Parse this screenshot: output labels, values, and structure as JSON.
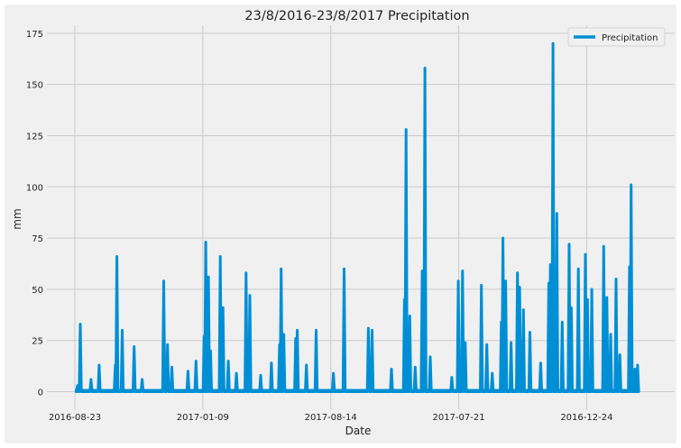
{
  "chart_data": {
    "type": "line",
    "title": "23/8/2016-23/8/2017 Precipitation",
    "xlabel": "Date",
    "ylabel": "mm",
    "ylim": [
      -9,
      178
    ],
    "x_tick_labels": [
      "2016-08-23",
      "2017-01-09",
      "2017-08-14",
      "2017-07-21",
      "2016-12-24"
    ],
    "y_ticks": [
      0,
      25,
      50,
      75,
      100,
      125,
      150,
      175
    ],
    "grid": true,
    "legend": {
      "position": "top-right",
      "entries": [
        "Precipitation"
      ]
    },
    "colors": {
      "series": "#008fd5",
      "background": "#f0f0f0",
      "grid": "#cbcbcb",
      "text": "#222222"
    },
    "series": [
      {
        "name": "Precipitation",
        "peaks": [
          {
            "x": 0.005,
            "y": 3
          },
          {
            "x": 0.01,
            "y": 33
          },
          {
            "x": 0.03,
            "y": 6
          },
          {
            "x": 0.045,
            "y": 13
          },
          {
            "x": 0.075,
            "y": 13
          },
          {
            "x": 0.078,
            "y": 66
          },
          {
            "x": 0.088,
            "y": 30
          },
          {
            "x": 0.11,
            "y": 22
          },
          {
            "x": 0.125,
            "y": 6
          },
          {
            "x": 0.165,
            "y": 54
          },
          {
            "x": 0.172,
            "y": 23
          },
          {
            "x": 0.18,
            "y": 12
          },
          {
            "x": 0.21,
            "y": 10
          },
          {
            "x": 0.225,
            "y": 15
          },
          {
            "x": 0.24,
            "y": 27
          },
          {
            "x": 0.243,
            "y": 73
          },
          {
            "x": 0.248,
            "y": 56
          },
          {
            "x": 0.252,
            "y": 20
          },
          {
            "x": 0.27,
            "y": 66
          },
          {
            "x": 0.275,
            "y": 41
          },
          {
            "x": 0.285,
            "y": 15
          },
          {
            "x": 0.3,
            "y": 9
          },
          {
            "x": 0.318,
            "y": 58
          },
          {
            "x": 0.325,
            "y": 47
          },
          {
            "x": 0.345,
            "y": 8
          },
          {
            "x": 0.365,
            "y": 14
          },
          {
            "x": 0.38,
            "y": 23
          },
          {
            "x": 0.383,
            "y": 60
          },
          {
            "x": 0.388,
            "y": 28
          },
          {
            "x": 0.41,
            "y": 26
          },
          {
            "x": 0.413,
            "y": 30
          },
          {
            "x": 0.43,
            "y": 13
          },
          {
            "x": 0.448,
            "y": 30
          },
          {
            "x": 0.48,
            "y": 9
          },
          {
            "x": 0.5,
            "y": 60
          },
          {
            "x": 0.545,
            "y": 31
          },
          {
            "x": 0.552,
            "y": 30
          },
          {
            "x": 0.588,
            "y": 11
          },
          {
            "x": 0.612,
            "y": 45
          },
          {
            "x": 0.615,
            "y": 128
          },
          {
            "x": 0.622,
            "y": 37
          },
          {
            "x": 0.632,
            "y": 12
          },
          {
            "x": 0.645,
            "y": 59
          },
          {
            "x": 0.65,
            "y": 158
          },
          {
            "x": 0.66,
            "y": 17
          },
          {
            "x": 0.7,
            "y": 7
          },
          {
            "x": 0.712,
            "y": 54
          },
          {
            "x": 0.72,
            "y": 59
          },
          {
            "x": 0.725,
            "y": 24
          },
          {
            "x": 0.755,
            "y": 52
          },
          {
            "x": 0.765,
            "y": 23
          },
          {
            "x": 0.775,
            "y": 9
          },
          {
            "x": 0.792,
            "y": 34
          },
          {
            "x": 0.795,
            "y": 75
          },
          {
            "x": 0.8,
            "y": 54
          },
          {
            "x": 0.81,
            "y": 24
          },
          {
            "x": 0.822,
            "y": 58
          },
          {
            "x": 0.826,
            "y": 51
          },
          {
            "x": 0.833,
            "y": 40
          },
          {
            "x": 0.845,
            "y": 29
          },
          {
            "x": 0.865,
            "y": 14
          },
          {
            "x": 0.88,
            "y": 53
          },
          {
            "x": 0.883,
            "y": 62
          },
          {
            "x": 0.888,
            "y": 170
          },
          {
            "x": 0.895,
            "y": 87
          },
          {
            "x": 0.905,
            "y": 34
          },
          {
            "x": 0.918,
            "y": 72
          },
          {
            "x": 0.922,
            "y": 41
          },
          {
            "x": 0.935,
            "y": 60
          },
          {
            "x": 0.948,
            "y": 67
          },
          {
            "x": 0.952,
            "y": 45
          },
          {
            "x": 0.96,
            "y": 50
          },
          {
            "x": 0.982,
            "y": 71
          },
          {
            "x": 0.988,
            "y": 46
          },
          {
            "x": 0.995,
            "y": 28
          },
          {
            "x": 1.005,
            "y": 55
          },
          {
            "x": 1.012,
            "y": 18
          },
          {
            "x": 1.03,
            "y": 61
          },
          {
            "x": 1.033,
            "y": 101
          },
          {
            "x": 1.04,
            "y": 11
          },
          {
            "x": 1.045,
            "y": 13
          }
        ]
      }
    ]
  }
}
